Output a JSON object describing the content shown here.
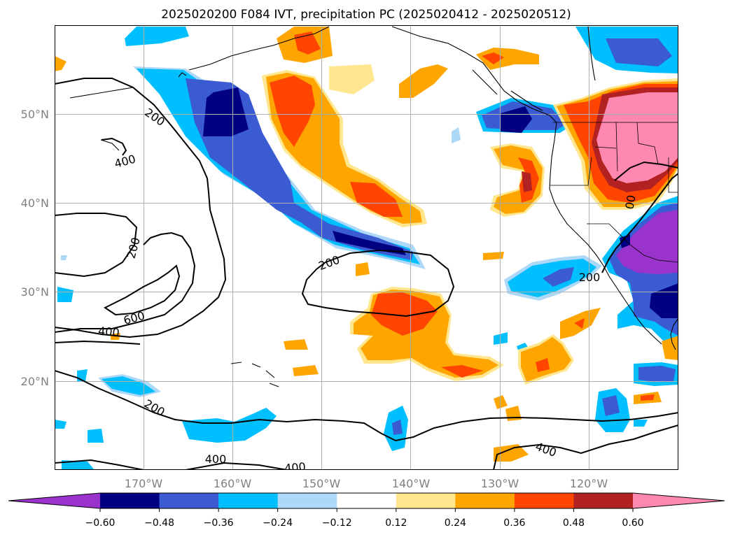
{
  "title": "2025020200 F084 IVT, precipitation PC (2025020412 - 2025020512)",
  "map": {
    "lon_range": [
      -180,
      -110
    ],
    "lat_range": [
      10,
      60
    ],
    "lat_ticks": [
      {
        "value": 20,
        "label": "20°N"
      },
      {
        "value": 30,
        "label": "30°N"
      },
      {
        "value": 40,
        "label": "40°N"
      },
      {
        "value": 50,
        "label": "50°N"
      }
    ],
    "lon_ticks": [
      {
        "value": -170,
        "label": "170°W"
      },
      {
        "value": -160,
        "label": "160°W"
      },
      {
        "value": -150,
        "label": "150°W"
      },
      {
        "value": -140,
        "label": "140°W"
      },
      {
        "value": -130,
        "label": "130°W"
      },
      {
        "value": -120,
        "label": "120°W"
      }
    ],
    "grid": true
  },
  "colorbar": {
    "extend": "both",
    "colors": [
      "#9933cc",
      "#000080",
      "#3a5bd1",
      "#00bfff",
      "#add8f8",
      "#ffffff",
      "#ffe68f",
      "#ffa500",
      "#ff4500",
      "#b22222",
      "#ff88b0"
    ],
    "tick_labels": [
      "−0.60",
      "−0.48",
      "−0.36",
      "−0.24",
      "−0.12",
      "0.12",
      "0.24",
      "0.36",
      "0.48",
      "0.60"
    ]
  },
  "ivt_contours": {
    "levels": [
      "200",
      "400",
      "600"
    ],
    "labels": [
      "200",
      "400",
      "200",
      "600",
      "400",
      "200",
      "200",
      "00",
      "200",
      "400",
      "400",
      "400"
    ]
  }
}
